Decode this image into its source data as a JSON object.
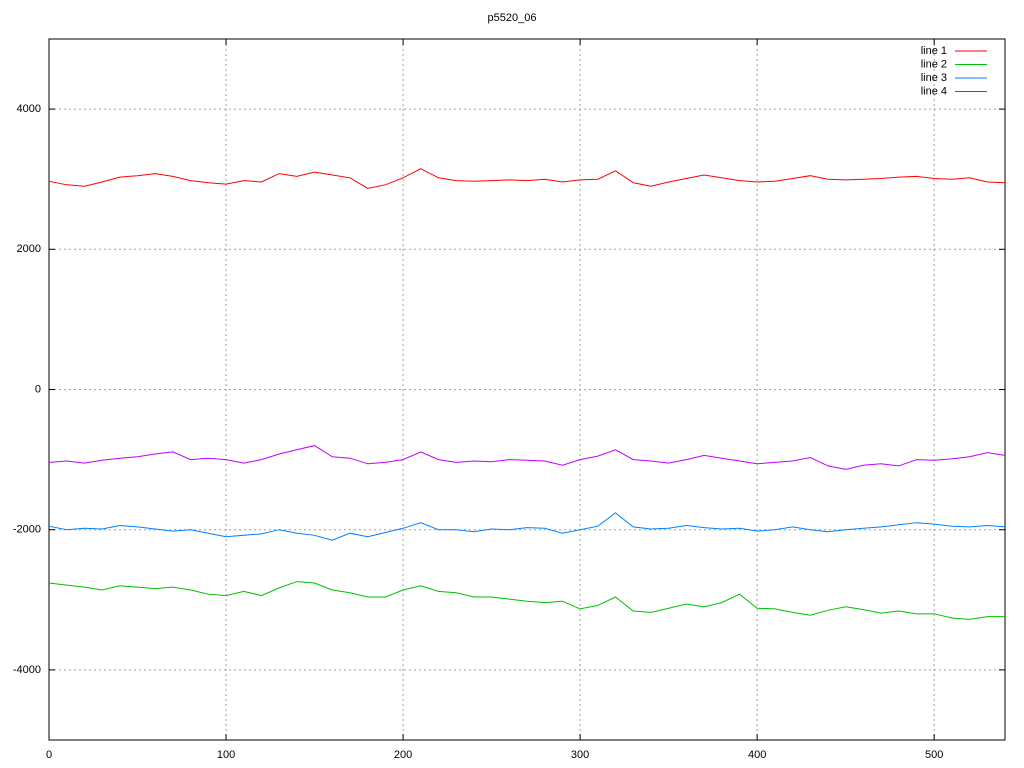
{
  "chart_data": {
    "type": "line",
    "title": "p5520_06",
    "x": [
      0,
      10,
      20,
      30,
      40,
      50,
      60,
      70,
      80,
      90,
      100,
      110,
      120,
      130,
      140,
      150,
      160,
      170,
      180,
      190,
      200,
      210,
      220,
      230,
      240,
      250,
      260,
      270,
      280,
      290,
      300,
      310,
      320,
      330,
      340,
      350,
      360,
      370,
      380,
      390,
      400,
      410,
      420,
      430,
      440,
      450,
      460,
      470,
      480,
      490,
      500,
      510,
      520,
      530,
      540
    ],
    "series": [
      {
        "name": "line 1",
        "color": "#ff0000",
        "values": [
          2970,
          2920,
          2900,
          2960,
          3030,
          3050,
          3080,
          3040,
          2980,
          2950,
          2930,
          2980,
          2960,
          3080,
          3040,
          3100,
          3060,
          3020,
          2870,
          2920,
          3020,
          3150,
          3020,
          2980,
          2970,
          2980,
          2990,
          2980,
          3000,
          2960,
          2990,
          3000,
          3120,
          2950,
          2900,
          2960,
          3010,
          3060,
          3020,
          2980,
          2960,
          2970,
          3010,
          3050,
          3000,
          2990,
          3000,
          3010,
          3030,
          3040,
          3010,
          3000,
          3020,
          2960,
          2950
        ]
      },
      {
        "name": "line 2",
        "color": "#00c000",
        "values": [
          -2760,
          -2790,
          -2820,
          -2860,
          -2800,
          -2820,
          -2840,
          -2820,
          -2860,
          -2920,
          -2940,
          -2880,
          -2940,
          -2830,
          -2740,
          -2760,
          -2860,
          -2900,
          -2960,
          -2960,
          -2860,
          -2800,
          -2880,
          -2900,
          -2960,
          -2960,
          -2990,
          -3020,
          -3040,
          -3020,
          -3130,
          -3080,
          -2960,
          -3160,
          -3180,
          -3120,
          -3060,
          -3100,
          -3040,
          -2920,
          -3120,
          -3130,
          -3180,
          -3220,
          -3150,
          -3100,
          -3140,
          -3190,
          -3160,
          -3200,
          -3200,
          -3260,
          -3280,
          -3240,
          -3240
        ]
      },
      {
        "name": "line 3",
        "color": "#0080ff",
        "values": [
          -1950,
          -2000,
          -1980,
          -1990,
          -1940,
          -1960,
          -1990,
          -2020,
          -2000,
          -2050,
          -2100,
          -2080,
          -2060,
          -2000,
          -2050,
          -2080,
          -2150,
          -2050,
          -2100,
          -2040,
          -1980,
          -1900,
          -2000,
          -2000,
          -2030,
          -1990,
          -2000,
          -1970,
          -1980,
          -2050,
          -2000,
          -1950,
          -1760,
          -1960,
          -1990,
          -1980,
          -1940,
          -1970,
          -1990,
          -1980,
          -2020,
          -2000,
          -1960,
          -2000,
          -2030,
          -2000,
          -1980,
          -1960,
          -1930,
          -1900,
          -1920,
          -1950,
          -1960,
          -1940,
          -1960
        ]
      },
      {
        "name": "line 4",
        "color": "#c000ff",
        "values": [
          -1040,
          -1020,
          -1050,
          -1010,
          -980,
          -960,
          -920,
          -890,
          -1000,
          -980,
          -1000,
          -1050,
          -1000,
          -920,
          -860,
          -800,
          -960,
          -980,
          -1060,
          -1040,
          -1000,
          -890,
          -1000,
          -1040,
          -1020,
          -1030,
          -1000,
          -1010,
          -1020,
          -1080,
          -1000,
          -950,
          -860,
          -1000,
          -1020,
          -1050,
          -1000,
          -940,
          -980,
          -1020,
          -1060,
          -1040,
          -1020,
          -970,
          -1090,
          -1140,
          -1080,
          -1060,
          -1090,
          -1000,
          -1010,
          -990,
          -960,
          -900,
          -940
        ]
      }
    ],
    "xlim": [
      0,
      540
    ],
    "xticks": [
      0,
      100,
      200,
      300,
      400,
      500
    ],
    "ylim": [
      -5000,
      5000
    ],
    "yticks": [
      -4000,
      -2000,
      0,
      2000,
      4000
    ],
    "grid": true,
    "legend": "top-right"
  }
}
